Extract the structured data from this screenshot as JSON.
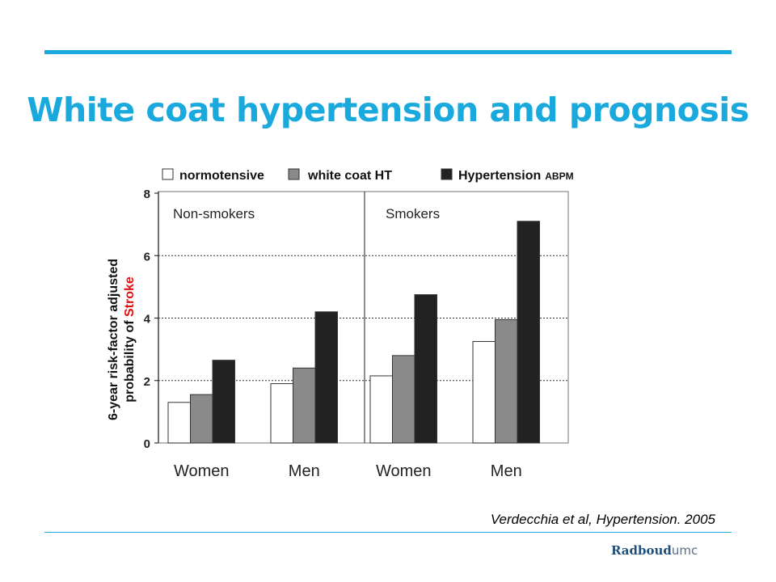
{
  "slide": {
    "title": "White coat hypertension and prognosis",
    "citation": "Verdecchia et al, Hypertension. 2005",
    "logo_brand": "Radboud",
    "logo_suffix": "umc",
    "accent_color": "#1aa9dc"
  },
  "chart_data": {
    "type": "bar",
    "ylabel_line1": "6-year risk-factor adjusted",
    "ylabel_line2_prefix": "probability of ",
    "ylabel_line2_highlight": "Stroke",
    "ylim": [
      0,
      8
    ],
    "yticks": [
      "0",
      "2",
      "4",
      "6",
      "8"
    ],
    "grid": "dotted horizontal",
    "legend_position": "top",
    "legend": [
      {
        "label": "normotensive",
        "color": "#ffffff"
      },
      {
        "label": "white coat HT",
        "color": "#8a8a8a"
      },
      {
        "label": "Hypertension",
        "suffix": "ABPM",
        "color": "#222222"
      }
    ],
    "panels": [
      {
        "label": "Non-smokers",
        "categories": [
          "Women",
          "Men"
        ],
        "series": [
          {
            "values": [
              1.3,
              1.9
            ]
          },
          {
            "values": [
              1.55,
              2.4
            ]
          },
          {
            "values": [
              2.65,
              4.2
            ]
          }
        ]
      },
      {
        "label": "Smokers",
        "categories": [
          "Women",
          "Men"
        ],
        "series": [
          {
            "values": [
              2.15,
              3.25
            ]
          },
          {
            "values": [
              2.8,
              3.95
            ]
          },
          {
            "values": [
              4.75,
              7.1
            ]
          }
        ]
      }
    ]
  }
}
